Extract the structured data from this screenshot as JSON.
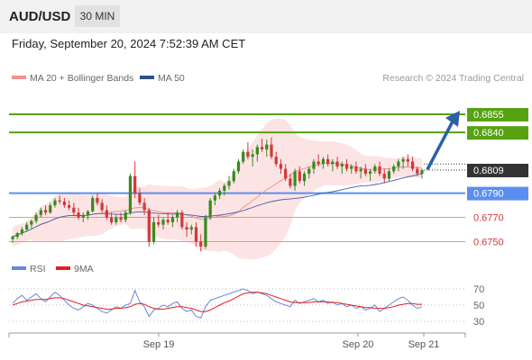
{
  "header": {
    "pair": "AUD/USD",
    "timeframe": "30 MIN",
    "timestamp": "Friday, September 20, 2024 7:52:39 AM CET"
  },
  "legend": {
    "ma20": "MA 20 + Bollinger Bands",
    "ma50": "MA 50",
    "copyright": "Research © 2024 Trading Central"
  },
  "rsi_legend": {
    "rsi": "RSI",
    "ma": "9MA"
  },
  "colors": {
    "bull": "#3a8a1f",
    "bear": "#d4373b",
    "resistance": "#56a213",
    "support": "#5b8ef0",
    "target_line": "#f09090",
    "ma20": "#e8908a",
    "ma50": "#4060a8",
    "band_fill": "#fde4e4",
    "arrow": "#2d5fa8",
    "last_price": "#333333",
    "rsi": "#6688dd",
    "rsi_ma": "#e02020"
  },
  "chart_data": {
    "type": "candlestick",
    "y_range": [
      0.674,
      0.6875
    ],
    "x_labels": [
      "Sep 19",
      "Sep 20",
      "Sep 21"
    ],
    "levels": [
      {
        "label": "0.6855",
        "value": 0.6855,
        "kind": "resistance"
      },
      {
        "label": "0.6840",
        "value": 0.684,
        "kind": "resistance"
      },
      {
        "label": "0.6809",
        "value": 0.6809,
        "kind": "last"
      },
      {
        "label": "0.6790",
        "value": 0.679,
        "kind": "support"
      },
      {
        "label": "0.6770",
        "value": 0.677,
        "kind": "target"
      },
      {
        "label": "0.6750",
        "value": 0.675,
        "kind": "target"
      }
    ],
    "forecast_arrow": {
      "from": 0.6808,
      "to": 0.6855
    },
    "candles": [
      [
        0.6752,
        0.6755,
        0.6749,
        0.6754
      ],
      [
        0.6754,
        0.6758,
        0.6752,
        0.6757
      ],
      [
        0.6757,
        0.6762,
        0.6755,
        0.676
      ],
      [
        0.676,
        0.6766,
        0.6758,
        0.6764
      ],
      [
        0.6764,
        0.6768,
        0.6761,
        0.6767
      ],
      [
        0.6767,
        0.6774,
        0.6765,
        0.6772
      ],
      [
        0.6772,
        0.6778,
        0.677,
        0.6776
      ],
      [
        0.6776,
        0.678,
        0.6772,
        0.6774
      ],
      [
        0.6774,
        0.6782,
        0.6773,
        0.678
      ],
      [
        0.678,
        0.6786,
        0.6778,
        0.6784
      ],
      [
        0.6784,
        0.6788,
        0.6781,
        0.6783
      ],
      [
        0.6783,
        0.6786,
        0.6778,
        0.678
      ],
      [
        0.678,
        0.6784,
        0.6776,
        0.6778
      ],
      [
        0.6778,
        0.6782,
        0.6772,
        0.6774
      ],
      [
        0.6774,
        0.6778,
        0.6768,
        0.677
      ],
      [
        0.677,
        0.6774,
        0.6766,
        0.6772
      ],
      [
        0.6772,
        0.6776,
        0.6768,
        0.6775
      ],
      [
        0.6775,
        0.6788,
        0.6774,
        0.6786
      ],
      [
        0.6786,
        0.679,
        0.678,
        0.6782
      ],
      [
        0.6782,
        0.6785,
        0.6774,
        0.6776
      ],
      [
        0.6776,
        0.678,
        0.6768,
        0.677
      ],
      [
        0.677,
        0.6774,
        0.6764,
        0.6766
      ],
      [
        0.6766,
        0.6772,
        0.6764,
        0.677
      ],
      [
        0.677,
        0.6774,
        0.6766,
        0.6768
      ],
      [
        0.6768,
        0.6776,
        0.6766,
        0.6774
      ],
      [
        0.6774,
        0.6806,
        0.6772,
        0.6804
      ],
      [
        0.6804,
        0.6816,
        0.6786,
        0.679
      ],
      [
        0.679,
        0.6794,
        0.678,
        0.6782
      ],
      [
        0.6782,
        0.6786,
        0.6772,
        0.6776
      ],
      [
        0.6776,
        0.6778,
        0.6746,
        0.675
      ],
      [
        0.675,
        0.677,
        0.6748,
        0.6766
      ],
      [
        0.6766,
        0.6772,
        0.6762,
        0.6764
      ],
      [
        0.6764,
        0.677,
        0.676,
        0.6768
      ],
      [
        0.6768,
        0.6774,
        0.6764,
        0.6766
      ],
      [
        0.6766,
        0.6772,
        0.6762,
        0.677
      ],
      [
        0.677,
        0.6776,
        0.6766,
        0.6774
      ],
      [
        0.6774,
        0.6776,
        0.676,
        0.6762
      ],
      [
        0.6762,
        0.6766,
        0.6754,
        0.676
      ],
      [
        0.676,
        0.6764,
        0.6756,
        0.6762
      ],
      [
        0.6762,
        0.6766,
        0.6746,
        0.675
      ],
      [
        0.675,
        0.6756,
        0.6742,
        0.6746
      ],
      [
        0.6746,
        0.6772,
        0.6744,
        0.677
      ],
      [
        0.677,
        0.6786,
        0.6768,
        0.6784
      ],
      [
        0.6784,
        0.679,
        0.678,
        0.6788
      ],
      [
        0.6788,
        0.6794,
        0.6785,
        0.6792
      ],
      [
        0.6792,
        0.6798,
        0.6788,
        0.6796
      ],
      [
        0.6796,
        0.6804,
        0.6793,
        0.68
      ],
      [
        0.68,
        0.681,
        0.6798,
        0.6808
      ],
      [
        0.6808,
        0.6818,
        0.6806,
        0.6816
      ],
      [
        0.6816,
        0.6826,
        0.6814,
        0.6824
      ],
      [
        0.6824,
        0.6832,
        0.6818,
        0.682
      ],
      [
        0.682,
        0.6826,
        0.6812,
        0.6822
      ],
      [
        0.6822,
        0.683,
        0.6816,
        0.6828
      ],
      [
        0.6828,
        0.6835,
        0.6824,
        0.6826
      ],
      [
        0.6826,
        0.6834,
        0.682,
        0.683
      ],
      [
        0.683,
        0.6836,
        0.6818,
        0.682
      ],
      [
        0.682,
        0.6824,
        0.6812,
        0.6814
      ],
      [
        0.6814,
        0.6818,
        0.6806,
        0.681
      ],
      [
        0.681,
        0.6814,
        0.68,
        0.6802
      ],
      [
        0.6802,
        0.6806,
        0.6794,
        0.6796
      ],
      [
        0.6796,
        0.681,
        0.6792,
        0.6808
      ],
      [
        0.6808,
        0.6812,
        0.6798,
        0.68
      ],
      [
        0.68,
        0.6808,
        0.6796,
        0.6806
      ],
      [
        0.6806,
        0.6812,
        0.6802,
        0.681
      ],
      [
        0.681,
        0.6818,
        0.6806,
        0.6816
      ],
      [
        0.6816,
        0.6822,
        0.6812,
        0.6814
      ],
      [
        0.6814,
        0.682,
        0.681,
        0.6818
      ],
      [
        0.6818,
        0.6822,
        0.6812,
        0.6814
      ],
      [
        0.6814,
        0.6818,
        0.6808,
        0.6816
      ],
      [
        0.6816,
        0.682,
        0.681,
        0.6812
      ],
      [
        0.6812,
        0.6816,
        0.6806,
        0.6814
      ],
      [
        0.6814,
        0.6818,
        0.6808,
        0.681
      ],
      [
        0.681,
        0.6814,
        0.6806,
        0.6812
      ],
      [
        0.6812,
        0.6816,
        0.6806,
        0.6808
      ],
      [
        0.6808,
        0.6812,
        0.6802,
        0.681
      ],
      [
        0.681,
        0.6814,
        0.6804,
        0.6806
      ],
      [
        0.6806,
        0.681,
        0.68,
        0.6808
      ],
      [
        0.6808,
        0.6814,
        0.6806,
        0.6812
      ],
      [
        0.6812,
        0.6816,
        0.6804,
        0.6806
      ],
      [
        0.6806,
        0.681,
        0.6798,
        0.6802
      ],
      [
        0.6802,
        0.681,
        0.68,
        0.6808
      ],
      [
        0.6808,
        0.6814,
        0.6806,
        0.6812
      ],
      [
        0.6812,
        0.6818,
        0.6808,
        0.6816
      ],
      [
        0.6816,
        0.682,
        0.681,
        0.6818
      ],
      [
        0.6818,
        0.6822,
        0.6812,
        0.6816
      ],
      [
        0.6816,
        0.682,
        0.6808,
        0.681
      ],
      [
        0.681,
        0.6812,
        0.6804,
        0.6806
      ],
      [
        0.6806,
        0.681,
        0.6802,
        0.6809
      ]
    ],
    "rsi_axis": {
      "ticks": [
        "70",
        "50",
        "30"
      ],
      "range": [
        20,
        80
      ]
    },
    "rsi": [
      52,
      58,
      62,
      56,
      60,
      64,
      58,
      54,
      60,
      66,
      62,
      56,
      50,
      46,
      44,
      48,
      52,
      50,
      46,
      42,
      40,
      44,
      48,
      46,
      50,
      52,
      68,
      54,
      48,
      36,
      44,
      46,
      50,
      48,
      52,
      54,
      46,
      42,
      44,
      36,
      34,
      48,
      56,
      58,
      60,
      62,
      64,
      66,
      68,
      70,
      68,
      64,
      66,
      64,
      62,
      58,
      54,
      52,
      50,
      48,
      56,
      52,
      54,
      56,
      58,
      54,
      56,
      52,
      54,
      50,
      52,
      48,
      50,
      46,
      48,
      44,
      46,
      50,
      42,
      46,
      50,
      54,
      58,
      60,
      56,
      50,
      46,
      48
    ],
    "rsi_ma": [
      50,
      52,
      54,
      55,
      56,
      57,
      57,
      57,
      58,
      59,
      59,
      58,
      56,
      54,
      52,
      50,
      49,
      48,
      47,
      46,
      45,
      45,
      46,
      46,
      47,
      48,
      51,
      52,
      51,
      48,
      46,
      45,
      45,
      46,
      47,
      48,
      48,
      47,
      46,
      44,
      42,
      42,
      44,
      47,
      50,
      53,
      55,
      58,
      61,
      64,
      65,
      66,
      66,
      65,
      64,
      62,
      60,
      58,
      56,
      54,
      53,
      53,
      53,
      53,
      54,
      54,
      54,
      54,
      53,
      53,
      52,
      51,
      50,
      49,
      48,
      47,
      47,
      46,
      46,
      46,
      47,
      48,
      50,
      51,
      52,
      52,
      51,
      51
    ]
  }
}
